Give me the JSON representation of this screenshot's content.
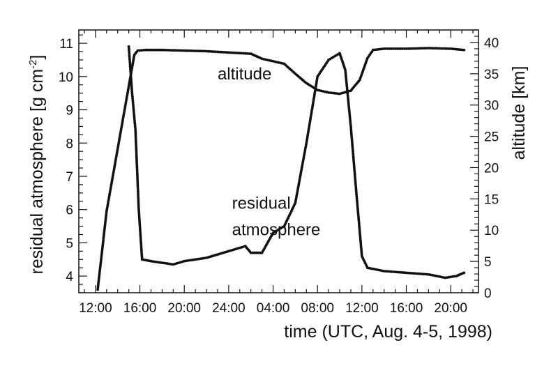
{
  "chart_data": {
    "type": "scatter",
    "xlabel": "time (UTC, Aug. 4-5, 1998)",
    "ylabel_left": "residual atmosphere [g cm",
    "ylabel_left_exponent": "-2",
    "ylabel_left_close": "]",
    "ylabel_right": "altitude [km]",
    "x_axis": {
      "unit": "hours since 12:00 UTC Aug. 4, 1998",
      "range": [
        -1.5,
        34.5
      ],
      "ticks": [
        {
          "value": 0,
          "label": "12:00"
        },
        {
          "value": 4,
          "label": "16:00"
        },
        {
          "value": 8,
          "label": "20:00"
        },
        {
          "value": 12,
          "label": "24:00"
        },
        {
          "value": 16,
          "label": "04:00"
        },
        {
          "value": 20,
          "label": "08:00"
        },
        {
          "value": 24,
          "label": "12:00"
        },
        {
          "value": 28,
          "label": "16:00"
        },
        {
          "value": 32,
          "label": "20:00"
        }
      ]
    },
    "y_left": {
      "range": [
        3.5,
        11.4
      ],
      "ticks": [
        4,
        5,
        6,
        7,
        8,
        9,
        10,
        11
      ]
    },
    "y_right": {
      "range": [
        0,
        42
      ],
      "ticks": [
        0,
        5,
        10,
        15,
        20,
        25,
        30,
        35,
        40
      ]
    },
    "grid": false,
    "legend": "none",
    "annotations": [
      {
        "text": "altitude",
        "x": 11.0,
        "y_right": 35.0
      },
      {
        "text": "residual",
        "x": 12.3,
        "y_right": 14.3
      },
      {
        "text": "atmosphere",
        "x": 12.3,
        "y_right": 10.1
      }
    ],
    "series": [
      {
        "axis": "right",
        "points": [
          [
            0.2,
            0.5
          ],
          [
            1.0,
            13.0
          ],
          [
            2.0,
            23.0
          ],
          [
            2.6,
            29.0
          ],
          [
            3.0,
            33.0
          ],
          [
            3.2,
            35.0
          ],
          [
            3.5,
            38.0
          ],
          [
            3.8,
            38.7
          ],
          [
            4.5,
            38.8
          ],
          [
            6.0,
            38.8
          ],
          [
            8.0,
            38.7
          ],
          [
            10.0,
            38.6
          ],
          [
            12.0,
            38.4
          ],
          [
            14.0,
            38.2
          ],
          [
            15.0,
            37.4
          ],
          [
            16.0,
            37.0
          ],
          [
            17.0,
            36.6
          ],
          [
            18.0,
            35.0
          ],
          [
            19.0,
            33.5
          ],
          [
            20.0,
            32.4
          ],
          [
            21.0,
            32.0
          ],
          [
            22.0,
            31.8
          ],
          [
            23.0,
            32.3
          ],
          [
            23.8,
            34.0
          ],
          [
            24.5,
            37.5
          ],
          [
            25.0,
            38.8
          ],
          [
            26.0,
            39.0
          ],
          [
            28.0,
            39.0
          ],
          [
            30.0,
            39.1
          ],
          [
            32.0,
            39.0
          ],
          [
            33.2,
            38.8
          ]
        ]
      },
      {
        "axis": "left",
        "points": [
          [
            3.0,
            10.9
          ],
          [
            3.3,
            9.5
          ],
          [
            3.6,
            8.4
          ],
          [
            3.9,
            6.0
          ],
          [
            4.2,
            4.5
          ],
          [
            5.0,
            4.45
          ],
          [
            6.0,
            4.4
          ],
          [
            7.0,
            4.35
          ],
          [
            8.0,
            4.45
          ],
          [
            10.0,
            4.55
          ],
          [
            12.0,
            4.75
          ],
          [
            13.0,
            4.85
          ],
          [
            13.5,
            4.9
          ],
          [
            14.0,
            4.7
          ],
          [
            15.0,
            4.7
          ],
          [
            16.0,
            5.3
          ],
          [
            17.0,
            5.5
          ],
          [
            18.0,
            6.2
          ],
          [
            19.0,
            8.0
          ],
          [
            20.0,
            10.0
          ],
          [
            21.0,
            10.5
          ],
          [
            22.0,
            10.7
          ],
          [
            22.5,
            10.2
          ],
          [
            23.0,
            8.5
          ],
          [
            23.5,
            6.5
          ],
          [
            24.0,
            4.6
          ],
          [
            24.5,
            4.25
          ],
          [
            26.0,
            4.15
          ],
          [
            28.0,
            4.1
          ],
          [
            30.0,
            4.05
          ],
          [
            31.5,
            3.95
          ],
          [
            32.5,
            4.0
          ],
          [
            33.2,
            4.1
          ]
        ]
      }
    ]
  }
}
